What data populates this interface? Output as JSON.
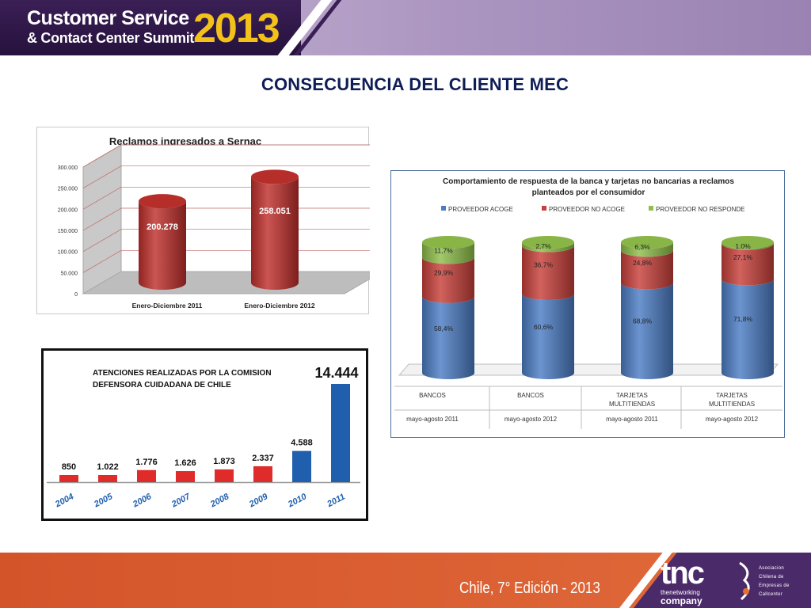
{
  "header": {
    "brand_line1": "Customer Service",
    "brand_line2": "& Contact Center Summit",
    "brand_year": "2013"
  },
  "page_title": "CONSECUENCIA DEL CLIENTE MEC",
  "footer": {
    "edition": "Chile, 7° Edición - 2013",
    "tnc_mark": "tnc",
    "tnc_sub1": "thenetworking",
    "tnc_sub2": "company",
    "aschec_lines": [
      "Asociacion",
      "Chilena de",
      "Empresas de",
      "Callcenter"
    ]
  },
  "colors": {
    "header_dark": "#26123d",
    "accent_yellow": "#f2c21b",
    "title_navy": "#0f1d56",
    "footer_orange": "#d4542a",
    "footer_purple": "#4b2a6a"
  },
  "chart_data": [
    {
      "type": "bar",
      "title": "Reclamos ingresados a Sernac",
      "categories": [
        "Enero-Diciembre 2011",
        "Enero-Diciembre 2012"
      ],
      "values": [
        200278,
        258051
      ],
      "value_labels": [
        "200.278",
        "258.051"
      ],
      "ylim": [
        0,
        300000
      ],
      "y_ticks": [
        0,
        50000,
        100000,
        150000,
        200000,
        250000,
        300000
      ],
      "y_tick_labels": [
        "0",
        "50.000",
        "100.000",
        "150.000",
        "200.000",
        "250.000",
        "300.000"
      ],
      "grid": true,
      "legend": "none",
      "bar_color": "#c0302c"
    },
    {
      "type": "bar",
      "stacked": true,
      "stack_mode": "percent",
      "title_lines": [
        "Comportamiento de respuesta de la banca y tarjetas no bancarias a reclamos",
        "planteados por el consumidor"
      ],
      "legend": "top",
      "categories": [
        "BANCOS",
        "BANCOS",
        "TARJETAS MULTITIENDAS",
        "TARJETAS MULTITIENDAS"
      ],
      "category_label_lines": [
        [
          "BANCOS"
        ],
        [
          "BANCOS"
        ],
        [
          "TARJETAS",
          "MULTITIENDAS"
        ],
        [
          "TARJETAS",
          "MULTITIENDAS"
        ]
      ],
      "periods": [
        "mayo-agosto 2011",
        "mayo-agosto 2012",
        "mayo-agosto 2011",
        "mayo-agosto 2012"
      ],
      "series": [
        {
          "name": "PROVEEDOR ACOGE",
          "color": "#4c7dc4",
          "values": [
            58.4,
            60.6,
            68.8,
            71.8
          ],
          "labels": [
            "58,4%",
            "60,6%",
            "68,8%",
            "71,8%"
          ]
        },
        {
          "name": "PROVEEDOR NO ACOGE",
          "color": "#c8403a",
          "values": [
            29.9,
            36.7,
            24.8,
            27.1
          ],
          "labels": [
            "29,9%",
            "36,7%",
            "24,8%",
            "27,1%"
          ]
        },
        {
          "name": "PROVEEDOR NO RESPONDE",
          "color": "#8fbe4a",
          "values": [
            11.7,
            2.7,
            6.3,
            1.0
          ],
          "labels": [
            "11,7%",
            "2,7%",
            "6,3%",
            "1,0%"
          ]
        }
      ]
    },
    {
      "type": "bar",
      "title_lines": [
        "ATENCIONES REALIZADAS POR LA COMISION",
        "DEFENSORA CUIDADANA DE CHILE"
      ],
      "categories": [
        "2004",
        "2005",
        "2006",
        "2007",
        "2008",
        "2009",
        "2010",
        "2011"
      ],
      "values": [
        850,
        1022,
        1776,
        1626,
        1873,
        2337,
        4588,
        14444
      ],
      "value_labels": [
        "850",
        "1.022",
        "1.776",
        "1.626",
        "1.873",
        "2.337",
        "4.588",
        "14.444"
      ],
      "bar_colors": [
        "#e02b2b",
        "#e02b2b",
        "#e02b2b",
        "#e02b2b",
        "#e02b2b",
        "#e02b2b",
        "#1f5fae",
        "#1f5fae"
      ],
      "legend": "none",
      "grid": false
    }
  ]
}
